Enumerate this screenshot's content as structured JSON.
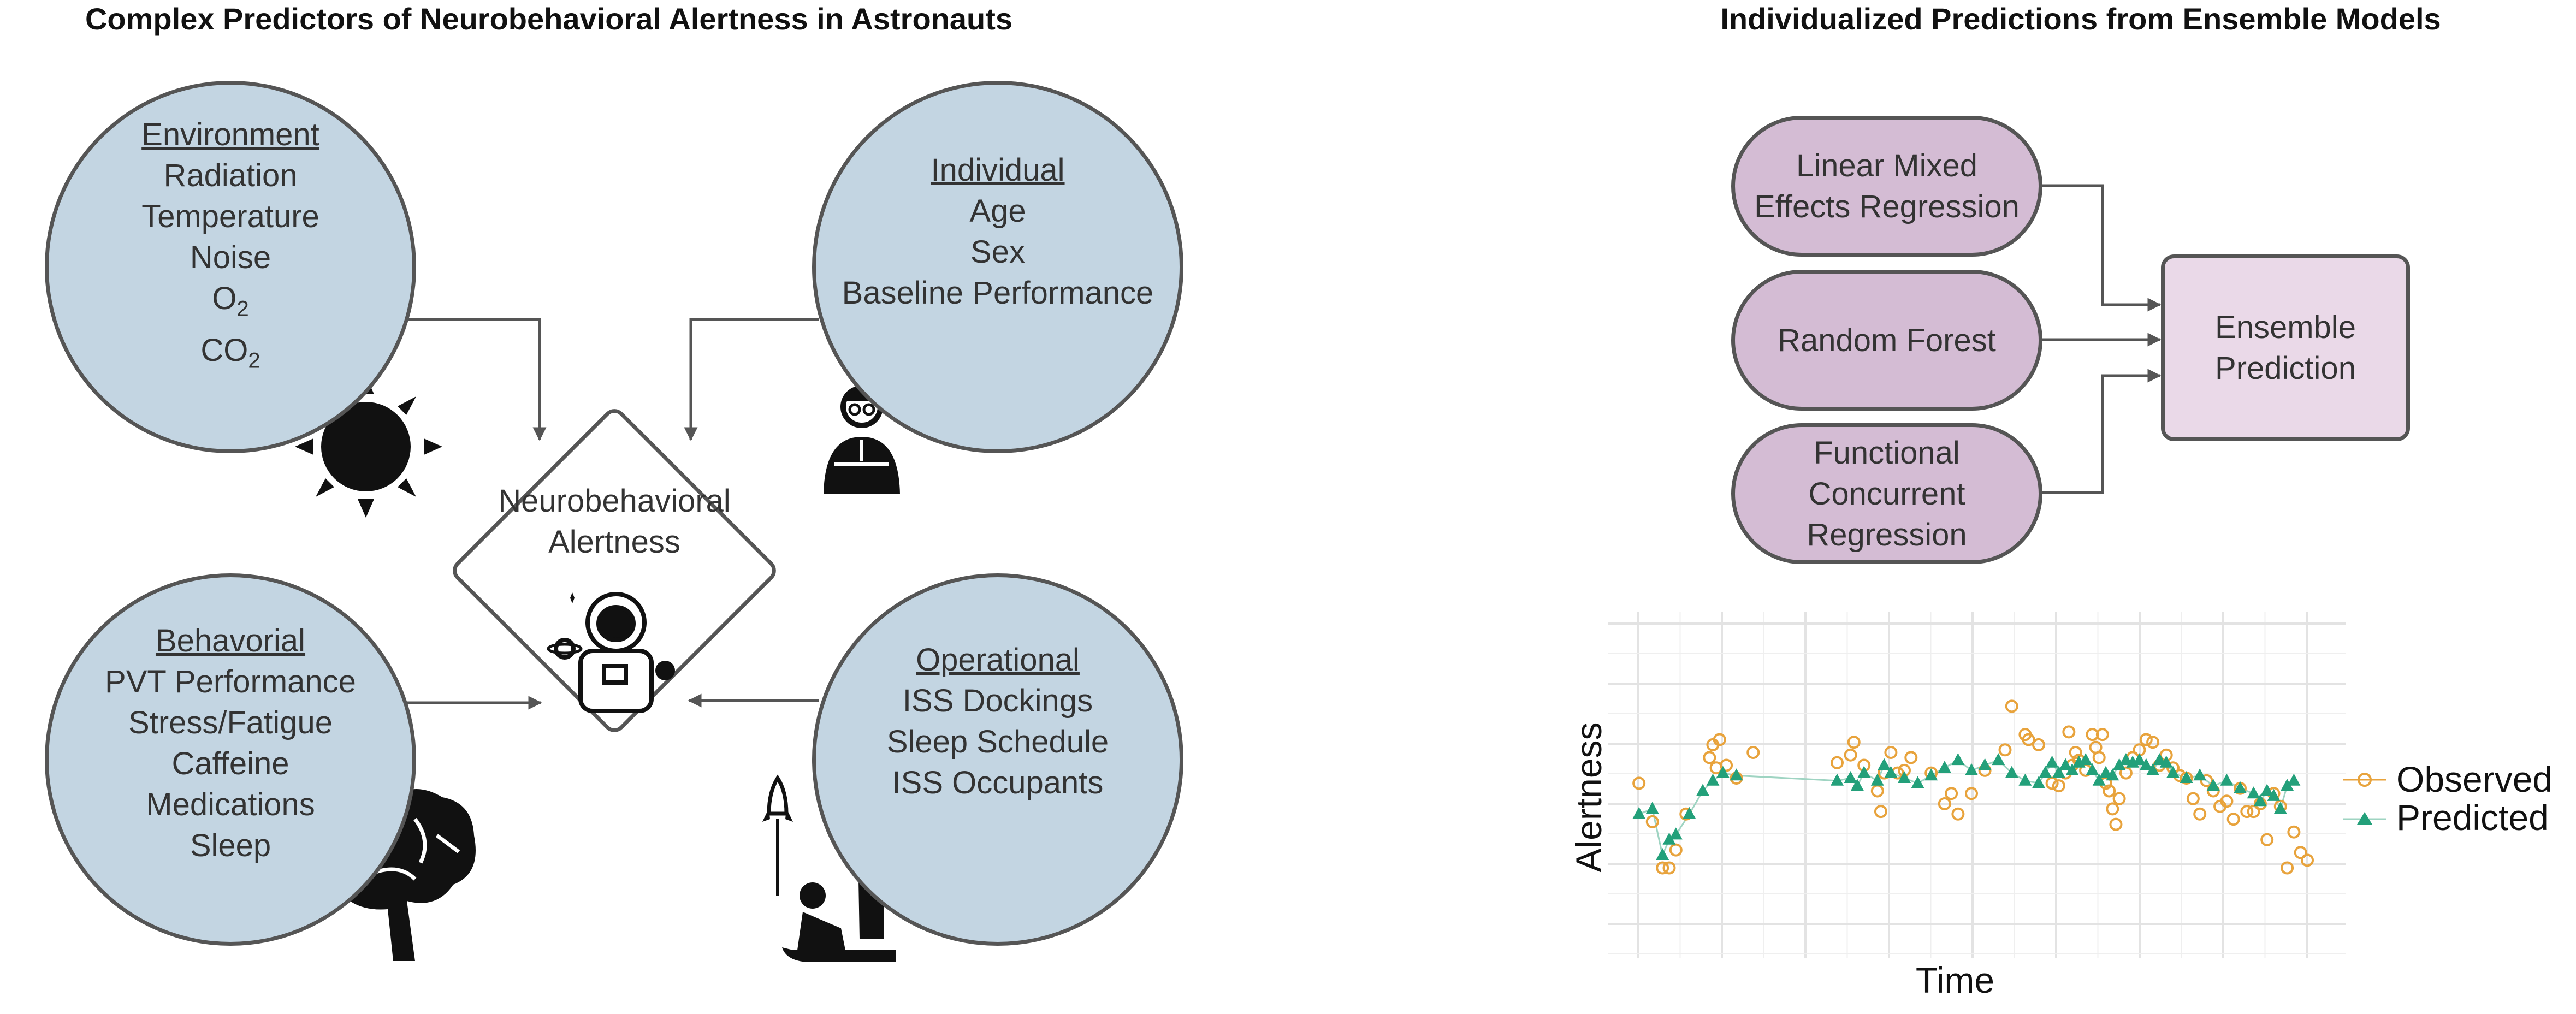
{
  "left_panel": {
    "title": "Complex Predictors of Neurobehavioral Alertness in Astronauts",
    "center": {
      "line1": "Neurobehavioral",
      "line2": "Alertness",
      "icon": "astronaut-icon"
    },
    "environment": {
      "heading": "Environment",
      "items": [
        "Radiation",
        "Temperature",
        "Noise"
      ],
      "o2_base": "O",
      "o2_sub": "2",
      "co2_base": "CO",
      "co2_sub": "2",
      "icon": "sun-icon"
    },
    "individual": {
      "heading": "Individual",
      "items": [
        "Age",
        "Sex",
        "Baseline Performance"
      ],
      "icon": "scientist-icon"
    },
    "behavioral": {
      "heading": "Behavorial",
      "items": [
        "PVT Performance",
        "Stress/Fatigue",
        "Caffeine",
        "Medications",
        "Sleep"
      ],
      "icon": "brain-icon"
    },
    "operational": {
      "heading": "Operational",
      "items": [
        "ISS Dockings",
        "Sleep Schedule",
        "ISS Occupants"
      ],
      "icon": "rocket-people-icon"
    }
  },
  "right_panel": {
    "title": "Individualized Predictions from Ensemble Models",
    "models": [
      "Linear Mixed",
      "Effects Regression",
      "Random Forest",
      "Functional",
      "Concurrent",
      "Regression"
    ],
    "ensemble": [
      "Ensemble",
      "Prediction"
    ]
  },
  "chart_data": {
    "type": "scatter",
    "xlabel": "Time",
    "ylabel": "Alertness",
    "xlim": [
      0,
      100
    ],
    "ylim": [
      0,
      100
    ],
    "x_tick_labels": [],
    "y_tick_labels": [],
    "grid": true,
    "legend_placement": "right",
    "series": [
      {
        "name": "Observed",
        "marker": "open-circle",
        "color": "#e8a33c",
        "points": [
          [
            0.5,
            48
          ],
          [
            2.5,
            33
          ],
          [
            4,
            15
          ],
          [
            5,
            15
          ],
          [
            6,
            22
          ],
          [
            7.5,
            36
          ],
          [
            11,
            58
          ],
          [
            11.5,
            63
          ],
          [
            12,
            54
          ],
          [
            12.5,
            65
          ],
          [
            13.5,
            55
          ],
          [
            15,
            50
          ],
          [
            17.5,
            60
          ],
          [
            30,
            56
          ],
          [
            32,
            59
          ],
          [
            32.5,
            64
          ],
          [
            34,
            55
          ],
          [
            36,
            45
          ],
          [
            36.5,
            37
          ],
          [
            37,
            52
          ],
          [
            38,
            60
          ],
          [
            39,
            52
          ],
          [
            40,
            53
          ],
          [
            41,
            58
          ],
          [
            44,
            52
          ],
          [
            46,
            40
          ],
          [
            47,
            44
          ],
          [
            48,
            36
          ],
          [
            50,
            44
          ],
          [
            52,
            53
          ],
          [
            55,
            61
          ],
          [
            56,
            78
          ],
          [
            58,
            67
          ],
          [
            58.5,
            65
          ],
          [
            60,
            63
          ],
          [
            62,
            48
          ],
          [
            63,
            47
          ],
          [
            64,
            52
          ],
          [
            64.5,
            68
          ],
          [
            65,
            55
          ],
          [
            65.5,
            60
          ],
          [
            66,
            57
          ],
          [
            67,
            53
          ],
          [
            68,
            67
          ],
          [
            68.5,
            62
          ],
          [
            69,
            58
          ],
          [
            69.5,
            67
          ],
          [
            70,
            48
          ],
          [
            70.5,
            45
          ],
          [
            71,
            38
          ],
          [
            71.5,
            32
          ],
          [
            72,
            42
          ],
          [
            73,
            52
          ],
          [
            74,
            58
          ],
          [
            75,
            61
          ],
          [
            76,
            65
          ],
          [
            77,
            64
          ],
          [
            78,
            55
          ],
          [
            79,
            59
          ],
          [
            80,
            54
          ],
          [
            81,
            51
          ],
          [
            82,
            50
          ],
          [
            83,
            42
          ],
          [
            84,
            36
          ],
          [
            85,
            49
          ],
          [
            86,
            45
          ],
          [
            87,
            39
          ],
          [
            88,
            41
          ],
          [
            89,
            34
          ],
          [
            90,
            46
          ],
          [
            91,
            37
          ],
          [
            92,
            37
          ],
          [
            93,
            40
          ],
          [
            94,
            26
          ],
          [
            95,
            44
          ],
          [
            96,
            39
          ],
          [
            97,
            15
          ],
          [
            98,
            29
          ],
          [
            99,
            21
          ],
          [
            100,
            18
          ]
        ]
      },
      {
        "name": "Predicted",
        "marker": "filled-triangle",
        "color": "#23a07a",
        "points": [
          [
            0.5,
            36
          ],
          [
            2.5,
            38
          ],
          [
            4,
            20
          ],
          [
            5,
            26
          ],
          [
            6,
            28
          ],
          [
            8,
            36
          ],
          [
            10,
            45
          ],
          [
            11.5,
            49
          ],
          [
            13,
            52
          ],
          [
            15,
            51
          ],
          [
            30,
            49
          ],
          [
            32,
            50
          ],
          [
            33,
            47
          ],
          [
            34,
            52
          ],
          [
            36,
            49
          ],
          [
            37,
            55
          ],
          [
            38,
            52
          ],
          [
            40,
            50
          ],
          [
            42,
            48
          ],
          [
            44,
            51
          ],
          [
            46,
            54
          ],
          [
            48,
            57
          ],
          [
            50,
            53
          ],
          [
            52,
            55
          ],
          [
            54,
            57
          ],
          [
            56,
            52
          ],
          [
            58,
            49
          ],
          [
            60,
            48
          ],
          [
            61,
            52
          ],
          [
            62,
            56
          ],
          [
            63,
            52
          ],
          [
            64,
            55
          ],
          [
            65,
            53
          ],
          [
            66,
            56
          ],
          [
            67,
            57
          ],
          [
            68,
            53
          ],
          [
            69,
            49
          ],
          [
            70,
            52
          ],
          [
            71,
            51
          ],
          [
            72,
            55
          ],
          [
            73,
            57
          ],
          [
            74,
            56
          ],
          [
            75,
            57
          ],
          [
            76,
            55
          ],
          [
            77,
            53
          ],
          [
            78,
            57
          ],
          [
            79,
            56
          ],
          [
            80,
            52
          ],
          [
            82,
            50
          ],
          [
            84,
            51
          ],
          [
            86,
            47
          ],
          [
            88,
            49
          ],
          [
            90,
            46
          ],
          [
            92,
            44
          ],
          [
            93,
            41
          ],
          [
            94,
            45
          ],
          [
            95,
            43
          ],
          [
            96,
            38
          ],
          [
            97,
            47
          ],
          [
            98,
            49
          ]
        ]
      }
    ]
  }
}
